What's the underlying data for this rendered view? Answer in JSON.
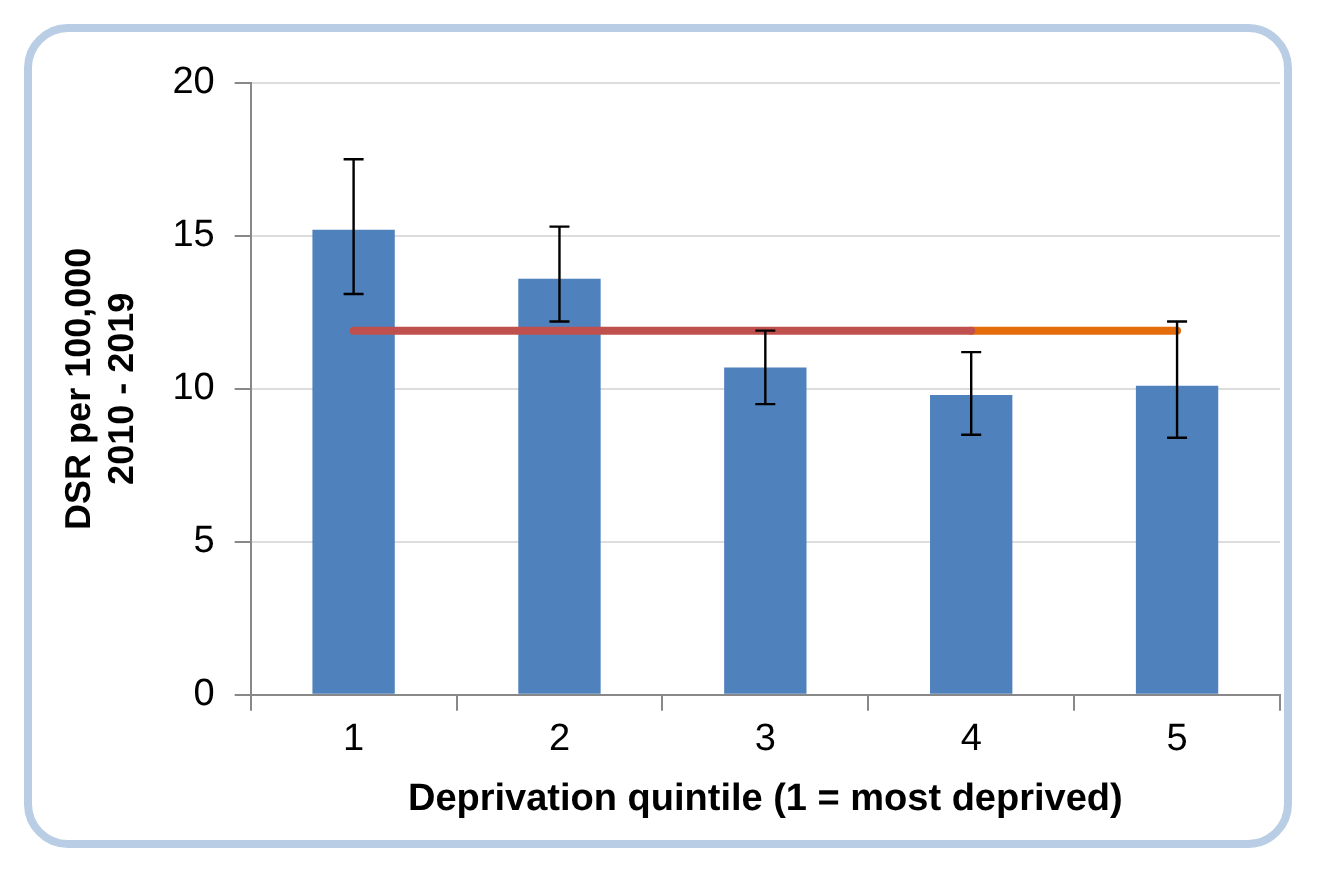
{
  "chart_data": {
    "type": "bar",
    "xlabel": "Deprivation quintile (1 = most deprived)",
    "ylabel": "DSR per 100,000\n2010 - 2019",
    "categories": [
      "1",
      "2",
      "3",
      "4",
      "5"
    ],
    "series": [
      {
        "color": "#4f81bd",
        "values": [
          15.2,
          13.6,
          10.7,
          9.8,
          10.1
        ],
        "errors": [
          [
            13.1,
            17.5
          ],
          [
            12.2,
            15.3
          ],
          [
            9.5,
            11.9
          ],
          [
            8.5,
            11.2
          ],
          [
            8.4,
            12.2
          ]
        ]
      },
      {
        "type": "line",
        "color": "#c0504d",
        "values": [
          11.9,
          11.9,
          11.9,
          11.9,
          null
        ]
      },
      {
        "type": "line",
        "color": "#e46c0a",
        "values": [
          null,
          null,
          null,
          11.9,
          11.9
        ]
      }
    ],
    "ylim": [
      0,
      20
    ],
    "yticks": [
      0,
      5,
      10,
      15,
      20
    ],
    "grid": "y",
    "legend": false,
    "marker": "none"
  }
}
